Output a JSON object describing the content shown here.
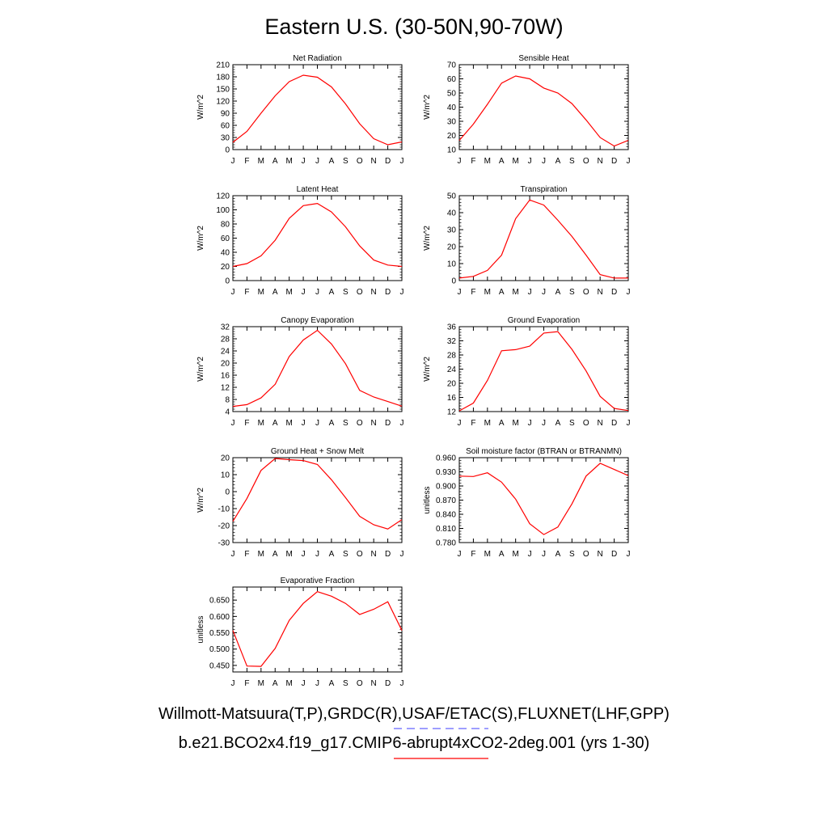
{
  "title": "Eastern U.S. (30-50N,90-70W)",
  "legend": {
    "obs_text": "Willmott-Matsuura(T,P),GRDC(R),USAF/ETAC(S),FLUXNET(LHF,GPP)",
    "obs_color": "#6464ff",
    "model_text": "b.e21.BCO2x4.f19_g17.CMIP6-abrupt4xCO2-2deg.001 (yrs 1-30)",
    "model_color": "#ff0000"
  },
  "chart_data": [
    {
      "type": "line",
      "title": "Net Radiation",
      "ylabel": "W/m^2",
      "categories": [
        "J",
        "F",
        "M",
        "A",
        "M",
        "J",
        "J",
        "A",
        "S",
        "O",
        "N",
        "D",
        "J"
      ],
      "ylim": [
        0,
        210
      ],
      "yticks": [
        "0",
        "30",
        "60",
        "90",
        "120",
        "150",
        "180",
        "210"
      ],
      "series": [
        {
          "values": [
            18,
            45,
            90,
            133,
            168,
            184,
            179,
            155,
            113,
            64,
            27,
            12,
            19
          ],
          "color": "#ff0000"
        }
      ]
    },
    {
      "type": "line",
      "title": "Sensible Heat",
      "ylabel": "W/m^2",
      "categories": [
        "J",
        "F",
        "M",
        "A",
        "M",
        "J",
        "J",
        "A",
        "S",
        "O",
        "N",
        "D",
        "J"
      ],
      "ylim": [
        10,
        70
      ],
      "yticks": [
        "10",
        "20",
        "30",
        "40",
        "50",
        "60",
        "70"
      ],
      "series": [
        {
          "values": [
            16.5,
            28,
            42,
            57,
            62,
            60,
            53.5,
            50,
            42.5,
            31,
            18.5,
            12.5,
            16.5
          ],
          "color": "#ff0000"
        }
      ]
    },
    {
      "type": "line",
      "title": "Latent Heat",
      "ylabel": "W/m^2",
      "categories": [
        "J",
        "F",
        "M",
        "A",
        "M",
        "J",
        "J",
        "A",
        "S",
        "O",
        "N",
        "D",
        "J"
      ],
      "ylim": [
        0,
        120
      ],
      "yticks": [
        "0",
        "20",
        "40",
        "60",
        "80",
        "100",
        "120"
      ],
      "series": [
        {
          "values": [
            20,
            24,
            35,
            57,
            88,
            106,
            109,
            97,
            76,
            49,
            29,
            22,
            20
          ],
          "color": "#ff0000"
        }
      ]
    },
    {
      "type": "line",
      "title": "Transpiration",
      "ylabel": "W/m^2",
      "categories": [
        "J",
        "F",
        "M",
        "A",
        "M",
        "J",
        "J",
        "A",
        "S",
        "O",
        "N",
        "D",
        "J"
      ],
      "ylim": [
        0,
        50
      ],
      "yticks": [
        "0",
        "10",
        "20",
        "30",
        "40",
        "50"
      ],
      "series": [
        {
          "values": [
            1.5,
            2.5,
            6,
            15,
            36.5,
            47.5,
            44.5,
            35.5,
            26,
            15,
            3.5,
            1.5,
            1.5
          ],
          "color": "#ff0000"
        }
      ]
    },
    {
      "type": "line",
      "title": "Canopy Evaporation",
      "ylabel": "W/m^2",
      "categories": [
        "J",
        "F",
        "M",
        "A",
        "M",
        "J",
        "J",
        "A",
        "S",
        "O",
        "N",
        "D",
        "J"
      ],
      "ylim": [
        4,
        32
      ],
      "yticks": [
        "4",
        "8",
        "12",
        "16",
        "20",
        "24",
        "28",
        "32"
      ],
      "series": [
        {
          "values": [
            5.7,
            6.3,
            8.5,
            13,
            22.2,
            27.6,
            30.8,
            26.3,
            19.8,
            11,
            8.8,
            7.3,
            5.8
          ],
          "color": "#ff0000"
        }
      ]
    },
    {
      "type": "line",
      "title": "Ground Evaporation",
      "ylabel": "W/m^2",
      "categories": [
        "J",
        "F",
        "M",
        "A",
        "M",
        "J",
        "J",
        "A",
        "S",
        "O",
        "N",
        "D",
        "J"
      ],
      "ylim": [
        12,
        36
      ],
      "yticks": [
        "12",
        "16",
        "20",
        "24",
        "28",
        "32",
        "36"
      ],
      "series": [
        {
          "values": [
            12.2,
            14.4,
            20.8,
            29.2,
            29.5,
            30.5,
            34.2,
            34.6,
            29.6,
            23.5,
            16.3,
            12.9,
            12.3
          ],
          "color": "#ff0000"
        }
      ]
    },
    {
      "type": "line",
      "title": "Ground Heat + Snow Melt",
      "ylabel": "W/m^2",
      "categories": [
        "J",
        "F",
        "M",
        "A",
        "M",
        "J",
        "J",
        "A",
        "S",
        "O",
        "N",
        "D",
        "J"
      ],
      "ylim": [
        -30,
        20
      ],
      "yticks": [
        "-30",
        "-20",
        "-10",
        "0",
        "10",
        "20"
      ],
      "series": [
        {
          "values": [
            -17.5,
            -4,
            12.5,
            19.5,
            18.8,
            18.3,
            16,
            7,
            -3.5,
            -14.5,
            -19.5,
            -22,
            -16.5
          ],
          "color": "#ff0000"
        }
      ]
    },
    {
      "type": "line",
      "title": "Soil moisture factor (BTRAN or BTRANMN)",
      "ylabel": "unitless",
      "categories": [
        "J",
        "F",
        "M",
        "A",
        "M",
        "J",
        "J",
        "A",
        "S",
        "O",
        "N",
        "D",
        "J"
      ],
      "ylim": [
        0.78,
        0.96
      ],
      "yticks": [
        "0.780",
        "0.810",
        "0.840",
        "0.870",
        "0.900",
        "0.930",
        "0.960"
      ],
      "series": [
        {
          "values": [
            0.921,
            0.92,
            0.928,
            0.908,
            0.872,
            0.82,
            0.797,
            0.813,
            0.862,
            0.921,
            0.948,
            0.935,
            0.922
          ],
          "color": "#ff0000"
        }
      ]
    },
    {
      "type": "line",
      "title": "Evaporative Fraction",
      "ylabel": "unitless",
      "categories": [
        "J",
        "F",
        "M",
        "A",
        "M",
        "J",
        "J",
        "A",
        "S",
        "O",
        "N",
        "D",
        "J"
      ],
      "ylim": [
        0.43,
        0.69
      ],
      "yticks": [
        "0.450",
        "0.500",
        "0.550",
        "0.600",
        "0.650"
      ],
      "ytick_values": [
        0.45,
        0.5,
        0.55,
        0.6,
        0.65
      ],
      "series": [
        {
          "values": [
            0.557,
            0.448,
            0.447,
            0.502,
            0.588,
            0.64,
            0.676,
            0.662,
            0.64,
            0.606,
            0.622,
            0.645,
            0.557
          ],
          "color": "#ff0000"
        }
      ]
    }
  ]
}
